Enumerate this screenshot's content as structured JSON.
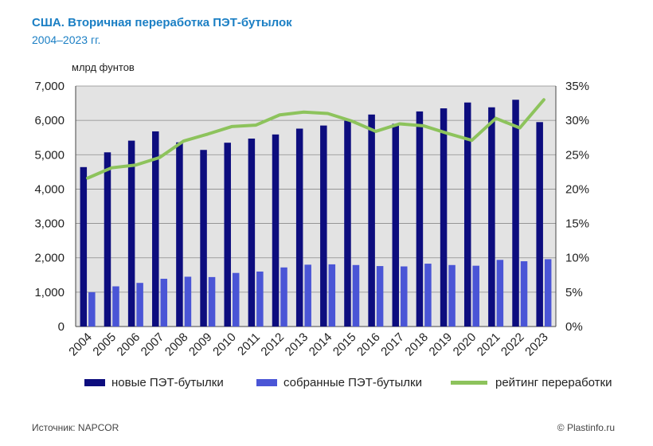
{
  "header": {
    "title": "США. Вторичная переработка ПЭТ-бутылок",
    "subtitle": "2004–2023 гг."
  },
  "colors": {
    "plot_bg": "#e3e3e3",
    "new_bottles": "#0d0d7e",
    "collected_bottles": "#4a55d6",
    "recycling_rate": "#8dc35c",
    "title": "#1b7fc4"
  },
  "chart_data": {
    "type": "bar",
    "title": "США. Вторичная переработка ПЭТ-бутылок",
    "subtitle": "2004–2023 гг.",
    "ylabel": "млрд фунтов",
    "ylim": [
      0,
      7000
    ],
    "y_ticks": [
      "0",
      "1,000",
      "2,000",
      "3,000",
      "4,000",
      "5,000",
      "6,000",
      "7,000"
    ],
    "y2lim": [
      0,
      35
    ],
    "y2_ticks": [
      "0%",
      "5%",
      "10%",
      "15%",
      "20%",
      "25%",
      "30%",
      "35%"
    ],
    "grid": true,
    "legend_position": "bottom",
    "categories": [
      "2004",
      "2005",
      "2006",
      "2007",
      "2008",
      "2009",
      "2010",
      "2011",
      "2012",
      "2013",
      "2014",
      "2015",
      "2016",
      "2017",
      "2018",
      "2019",
      "2020",
      "2021",
      "2022",
      "2023"
    ],
    "series": [
      {
        "name": "новые ПЭТ-бутылки",
        "type": "bar",
        "axis": "left",
        "values": [
          4640,
          5070,
          5410,
          5680,
          5360,
          5140,
          5350,
          5470,
          5590,
          5760,
          5850,
          5990,
          6170,
          5900,
          6260,
          6350,
          6520,
          6380,
          6600,
          5950
        ]
      },
      {
        "name": "собранные ПЭТ-бутылки",
        "type": "bar",
        "axis": "left",
        "values": [
          1000,
          1170,
          1270,
          1390,
          1450,
          1440,
          1560,
          1600,
          1720,
          1800,
          1810,
          1790,
          1760,
          1750,
          1830,
          1790,
          1770,
          1940,
          1900,
          1960
        ]
      },
      {
        "name": "рейтинг переработки",
        "type": "line",
        "axis": "right",
        "values": [
          21.6,
          23.1,
          23.5,
          24.6,
          27.0,
          28.0,
          29.1,
          29.3,
          30.8,
          31.2,
          31.0,
          29.9,
          28.4,
          29.5,
          29.2,
          28.1,
          27.1,
          30.3,
          28.9,
          33.0
        ]
      }
    ]
  },
  "footer": {
    "source": "Источник: NAPCOR",
    "copyright": "© Plastinfo.ru"
  }
}
